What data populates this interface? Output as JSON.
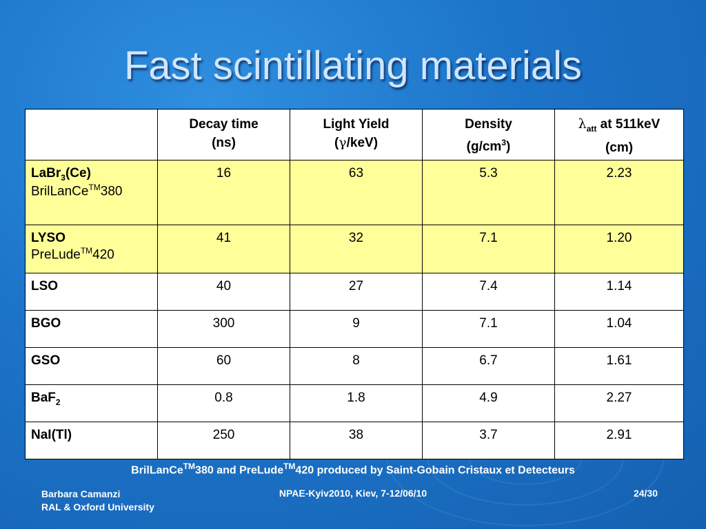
{
  "slide": {
    "title": "Fast scintillating materials",
    "footnote": {
      "part1": "BrilLanCe",
      "tm1": "TM",
      "part2": "380 and PreLude",
      "tm2": "TM",
      "part3": "420 produced by Saint-Gobain Cristaux et Detecteurs"
    },
    "footer_left_line1": "Barbara Camanzi",
    "footer_left_line2": "RAL & Oxford University",
    "footer_center": "NPAE-Kyiv2010, Kiev, 7-12/06/10",
    "footer_right": "24/30"
  },
  "table": {
    "headers": [
      {
        "line1": "Decay time",
        "line2": "(ns)"
      },
      {
        "line1": "Light Yield",
        "line2a": "(",
        "gamma": "γ",
        "line2b": "/keV)"
      },
      {
        "line1": "Density",
        "line2a": "(g/cm",
        "sup": "3",
        "line2b": ")"
      },
      {
        "lambda": "λ",
        "sub": "att",
        "line1b": " at 511keV",
        "line2": "(cm)"
      }
    ],
    "rows": [
      {
        "name": "LaBr",
        "sub": "3",
        "suffix": "(Ce)",
        "brand": "BrilLanCe",
        "tm": "TM",
        "brand_suffix": "380",
        "values": [
          "16",
          "63",
          "5.3",
          "2.23"
        ]
      },
      {
        "name": "LYSO",
        "brand": "PreLude",
        "tm": "TM",
        "brand_suffix": "420",
        "values": [
          "41",
          "32",
          "7.1",
          "1.20"
        ]
      },
      {
        "name": "LSO",
        "values": [
          "40",
          "27",
          "7.4",
          "1.14"
        ]
      },
      {
        "name": "BGO",
        "values": [
          "300",
          "9",
          "7.1",
          "1.04"
        ]
      },
      {
        "name": "GSO",
        "values": [
          "60",
          "8",
          "6.7",
          "1.61"
        ]
      },
      {
        "name": "BaF",
        "sub": "2",
        "values": [
          "0.8",
          "1.8",
          "4.9",
          "2.27"
        ]
      },
      {
        "name": "NaI(Tl)",
        "values": [
          "250",
          "38",
          "3.7",
          "2.91"
        ]
      }
    ]
  }
}
